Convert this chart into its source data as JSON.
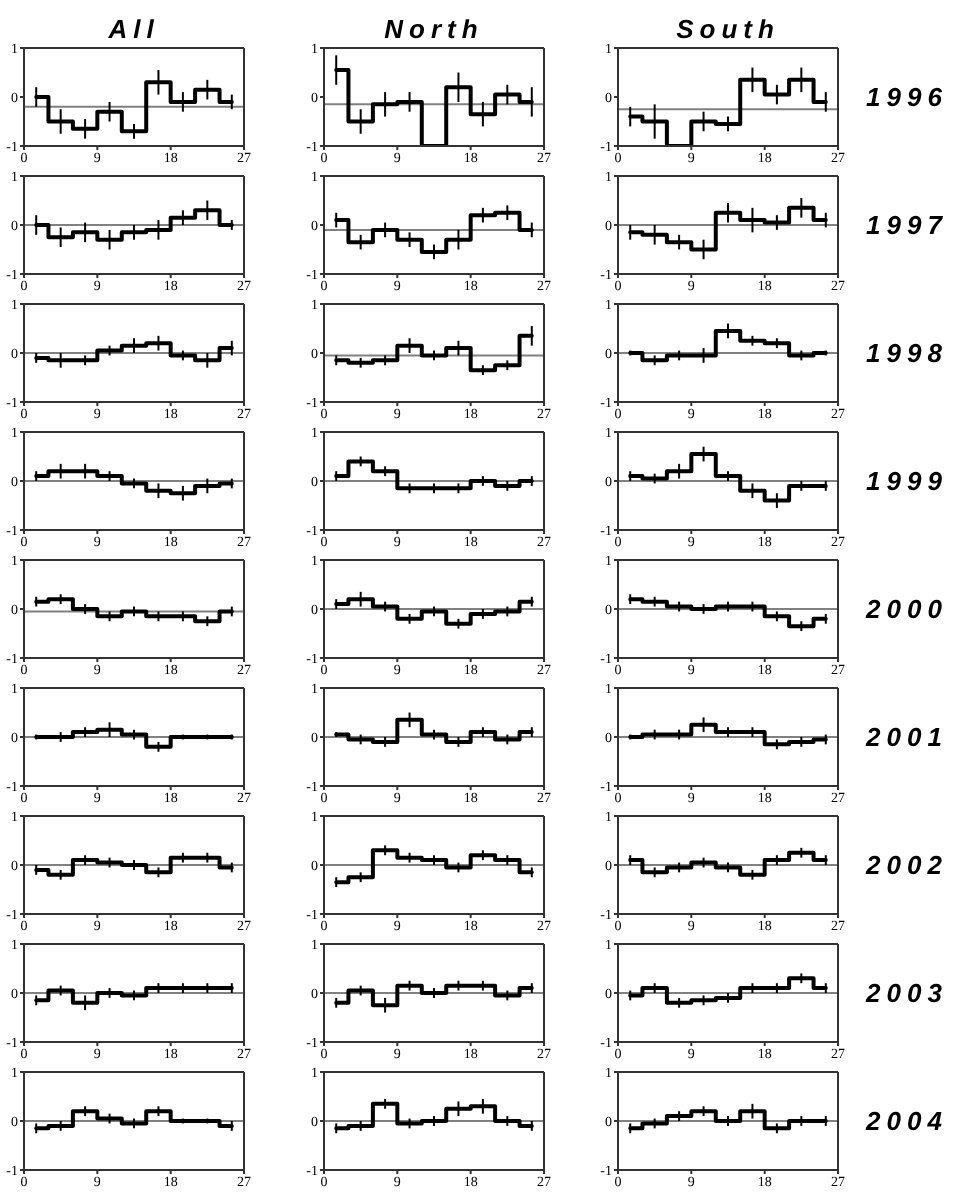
{
  "chart_data": [
    {
      "type": "step",
      "title": "All",
      "x": [
        1.5,
        4.5,
        7.5,
        10.5,
        13.5,
        16.5,
        19.5,
        22.5,
        25.5
      ],
      "values": [
        0,
        -0.5,
        -0.65,
        -0.3,
        -0.7,
        0.3,
        -0.1,
        0.15,
        -0.1
      ],
      "errors": [
        0.2,
        0.25,
        0.2,
        0.2,
        0.15,
        0.25,
        0.2,
        0.2,
        0.15
      ],
      "color": "#000000",
      "xlim": [
        0,
        27
      ],
      "xticks": [
        0,
        9,
        18,
        27
      ],
      "ylim": [
        -1,
        1
      ],
      "yticks": [
        -1,
        0,
        1
      ],
      "ref_lines": [
        {
          "axis": "y",
          "value": -0.2,
          "color": "#808080"
        }
      ]
    },
    {
      "type": "step",
      "title": "North",
      "x": [
        1.5,
        4.5,
        7.5,
        10.5,
        13.5,
        16.5,
        19.5,
        22.5,
        25.5
      ],
      "values": [
        0.55,
        -0.5,
        -0.15,
        -0.1,
        -1,
        0.2,
        -0.35,
        0.05,
        -0.1
      ],
      "errors": [
        0.3,
        0.25,
        0.25,
        0.2,
        null,
        0.3,
        0.25,
        0.2,
        0.3
      ],
      "color": "#000000",
      "xlim": [
        0,
        27
      ],
      "xticks": [
        0,
        9,
        18,
        27
      ],
      "ylim": [
        -1,
        1
      ],
      "yticks": [
        -1,
        0,
        1
      ],
      "ref_lines": [
        {
          "axis": "y",
          "value": -0.15,
          "color": "#808080"
        }
      ]
    },
    {
      "type": "step",
      "title": "South",
      "y2label": "1996",
      "x": [
        1.5,
        4.5,
        7.5,
        10.5,
        13.5,
        16.5,
        19.5,
        22.5,
        25.5
      ],
      "values": [
        -0.4,
        -0.5,
        -1,
        -0.5,
        -0.55,
        0.35,
        0.05,
        0.35,
        -0.1
      ],
      "errors": [
        0.2,
        0.35,
        null,
        0.2,
        0.15,
        0.25,
        0.2,
        0.25,
        0.2
      ],
      "color": "#000000",
      "xlim": [
        0,
        27
      ],
      "xticks": [
        0,
        9,
        18,
        27
      ],
      "ylim": [
        -1,
        1
      ],
      "yticks": [
        -1,
        0,
        1
      ],
      "ref_lines": [
        {
          "axis": "y",
          "value": -0.25,
          "color": "#808080"
        }
      ]
    },
    {
      "type": "step",
      "x": [
        1.5,
        4.5,
        7.5,
        10.5,
        13.5,
        16.5,
        19.5,
        22.5,
        25.5
      ],
      "values": [
        0,
        -0.25,
        -0.15,
        -0.3,
        -0.15,
        -0.1,
        0.15,
        0.3,
        0
      ],
      "errors": [
        0.2,
        0.2,
        0.2,
        0.2,
        0.15,
        0.2,
        0.15,
        0.2,
        0.1
      ],
      "color": "#000000",
      "xlim": [
        0,
        27
      ],
      "xticks": [
        0,
        9,
        18,
        27
      ],
      "ylim": [
        -1,
        1
      ],
      "yticks": [
        -1,
        0,
        1
      ],
      "ref_lines": [
        {
          "axis": "y",
          "value": 0,
          "color": "#808080"
        }
      ]
    },
    {
      "type": "step",
      "x": [
        1.5,
        4.5,
        7.5,
        10.5,
        13.5,
        16.5,
        19.5,
        22.5,
        25.5
      ],
      "values": [
        0.1,
        -0.35,
        -0.1,
        -0.3,
        -0.55,
        -0.3,
        0.2,
        0.25,
        -0.1
      ],
      "errors": [
        0.15,
        0.15,
        0.15,
        0.15,
        0.15,
        0.2,
        0.15,
        0.15,
        0.15
      ],
      "color": "#000000",
      "xlim": [
        0,
        27
      ],
      "xticks": [
        0,
        9,
        18,
        27
      ],
      "ylim": [
        -1,
        1
      ],
      "yticks": [
        -1,
        0,
        1
      ],
      "ref_lines": [
        {
          "axis": "y",
          "value": -0.1,
          "color": "#808080"
        }
      ]
    },
    {
      "type": "step",
      "y2label": "1997",
      "x": [
        1.5,
        4.5,
        7.5,
        10.5,
        13.5,
        16.5,
        19.5,
        22.5,
        25.5
      ],
      "values": [
        -0.15,
        -0.2,
        -0.35,
        -0.5,
        0.25,
        0.1,
        0.05,
        0.35,
        0.1
      ],
      "errors": [
        0.15,
        0.2,
        0.15,
        0.2,
        0.2,
        0.25,
        0.15,
        0.2,
        0.15
      ],
      "color": "#000000",
      "xlim": [
        0,
        27
      ],
      "xticks": [
        0,
        9,
        18,
        27
      ],
      "ylim": [
        -1,
        1
      ],
      "yticks": [
        -1,
        0,
        1
      ],
      "ref_lines": [
        {
          "axis": "y",
          "value": 0,
          "color": "#808080"
        }
      ]
    },
    {
      "type": "step",
      "x": [
        1.5,
        4.5,
        7.5,
        10.5,
        13.5,
        16.5,
        19.5,
        22.5,
        25.5
      ],
      "values": [
        -0.1,
        -0.15,
        -0.15,
        0.05,
        0.15,
        0.2,
        -0.05,
        -0.15,
        0.1
      ],
      "errors": [
        0.1,
        0.15,
        0.1,
        0.1,
        0.15,
        0.15,
        0.1,
        0.15,
        0.15
      ],
      "color": "#000000",
      "xlim": [
        0,
        27
      ],
      "xticks": [
        0,
        9,
        18,
        27
      ],
      "ylim": [
        -1,
        1
      ],
      "yticks": [
        -1,
        0,
        1
      ],
      "ref_lines": [
        {
          "axis": "y",
          "value": 0,
          "color": "#808080"
        }
      ]
    },
    {
      "type": "step",
      "x": [
        1.5,
        4.5,
        7.5,
        10.5,
        13.5,
        16.5,
        19.5,
        22.5,
        25.5
      ],
      "values": [
        -0.15,
        -0.2,
        -0.15,
        0.15,
        -0.05,
        0.1,
        -0.35,
        -0.25,
        0.35
      ],
      "errors": [
        0.1,
        0.1,
        0.1,
        0.15,
        0.1,
        0.15,
        0.1,
        0.1,
        0.2
      ],
      "color": "#000000",
      "xlim": [
        0,
        27
      ],
      "xticks": [
        0,
        9,
        18,
        27
      ],
      "ylim": [
        -1,
        1
      ],
      "yticks": [
        -1,
        0,
        1
      ],
      "ref_lines": [
        {
          "axis": "y",
          "value": -0.05,
          "color": "#808080"
        }
      ]
    },
    {
      "type": "step",
      "y2label": "1998",
      "x": [
        1.5,
        4.5,
        7.5,
        10.5,
        13.5,
        16.5,
        19.5,
        22.5,
        25.5
      ],
      "values": [
        0,
        -0.15,
        -0.05,
        -0.05,
        0.45,
        0.25,
        0.2,
        -0.05,
        0
      ],
      "errors": [
        0.05,
        0.1,
        0.1,
        0.15,
        0.15,
        0.1,
        0.1,
        0.1,
        0.05
      ],
      "color": "#000000",
      "xlim": [
        0,
        27
      ],
      "xticks": [
        0,
        9,
        18,
        27
      ],
      "ylim": [
        -1,
        1
      ],
      "yticks": [
        -1,
        0,
        1
      ],
      "ref_lines": [
        {
          "axis": "y",
          "value": 0,
          "color": "#808080"
        }
      ]
    },
    {
      "type": "step",
      "x": [
        1.5,
        4.5,
        7.5,
        10.5,
        13.5,
        16.5,
        19.5,
        22.5,
        25.5
      ],
      "values": [
        0.1,
        0.2,
        0.2,
        0.1,
        -0.05,
        -0.2,
        -0.25,
        -0.1,
        -0.05
      ],
      "errors": [
        0.1,
        0.15,
        0.15,
        0.1,
        0.1,
        0.15,
        0.15,
        0.15,
        0.1
      ],
      "color": "#000000",
      "xlim": [
        0,
        27
      ],
      "xticks": [
        0,
        9,
        18,
        27
      ],
      "ylim": [
        -1,
        1
      ],
      "yticks": [
        -1,
        0,
        1
      ],
      "ref_lines": [
        {
          "axis": "y",
          "value": 0,
          "color": "#808080"
        }
      ]
    },
    {
      "type": "step",
      "x": [
        1.5,
        4.5,
        7.5,
        10.5,
        13.5,
        16.5,
        19.5,
        22.5,
        25.5
      ],
      "values": [
        0.1,
        0.4,
        0.2,
        -0.15,
        -0.15,
        -0.15,
        0,
        -0.1,
        0
      ],
      "errors": [
        0.1,
        0.1,
        0.1,
        0.1,
        0.1,
        0.1,
        0.1,
        0.1,
        0.1
      ],
      "color": "#000000",
      "xlim": [
        0,
        27
      ],
      "xticks": [
        0,
        9,
        18,
        27
      ],
      "ylim": [
        -1,
        1
      ],
      "yticks": [
        -1,
        0,
        1
      ],
      "ref_lines": [
        {
          "axis": "y",
          "value": 0,
          "color": "#808080"
        }
      ]
    },
    {
      "type": "step",
      "y2label": "1999",
      "x": [
        1.5,
        4.5,
        7.5,
        10.5,
        13.5,
        16.5,
        19.5,
        22.5,
        25.5
      ],
      "values": [
        0.1,
        0.05,
        0.2,
        0.55,
        0.1,
        -0.2,
        -0.4,
        -0.1,
        -0.1
      ],
      "errors": [
        0.1,
        0.1,
        0.15,
        0.15,
        0.1,
        0.15,
        0.15,
        0.1,
        0.1
      ],
      "color": "#000000",
      "xlim": [
        0,
        27
      ],
      "xticks": [
        0,
        9,
        18,
        27
      ],
      "ylim": [
        -1,
        1
      ],
      "yticks": [
        -1,
        0,
        1
      ],
      "ref_lines": [
        {
          "axis": "y",
          "value": 0,
          "color": "#808080"
        }
      ]
    },
    {
      "type": "step",
      "x": [
        1.5,
        4.5,
        7.5,
        10.5,
        13.5,
        16.5,
        19.5,
        22.5,
        25.5
      ],
      "values": [
        0.15,
        0.2,
        0,
        -0.15,
        -0.05,
        -0.15,
        -0.15,
        -0.25,
        -0.05
      ],
      "errors": [
        0.1,
        0.1,
        0.1,
        0.1,
        0.1,
        0.1,
        0.1,
        0.1,
        0.1
      ],
      "color": "#000000",
      "xlim": [
        0,
        27
      ],
      "xticks": [
        0,
        9,
        18,
        27
      ],
      "ylim": [
        -1,
        1
      ],
      "yticks": [
        -1,
        0,
        1
      ],
      "ref_lines": [
        {
          "axis": "y",
          "value": -0.05,
          "color": "#808080"
        }
      ]
    },
    {
      "type": "step",
      "x": [
        1.5,
        4.5,
        7.5,
        10.5,
        13.5,
        16.5,
        19.5,
        22.5,
        25.5
      ],
      "values": [
        0.1,
        0.2,
        0.05,
        -0.2,
        -0.05,
        -0.3,
        -0.1,
        -0.05,
        0.15
      ],
      "errors": [
        0.1,
        0.15,
        0.1,
        0.1,
        0.1,
        0.1,
        0.1,
        0.1,
        0.1
      ],
      "color": "#000000",
      "xlim": [
        0,
        27
      ],
      "xticks": [
        0,
        9,
        18,
        27
      ],
      "ylim": [
        -1,
        1
      ],
      "yticks": [
        -1,
        0,
        1
      ],
      "ref_lines": [
        {
          "axis": "y",
          "value": 0,
          "color": "#808080"
        }
      ]
    },
    {
      "type": "step",
      "y2label": "2000",
      "x": [
        1.5,
        4.5,
        7.5,
        10.5,
        13.5,
        16.5,
        19.5,
        22.5,
        25.5
      ],
      "values": [
        0.2,
        0.15,
        0.05,
        0,
        0.05,
        0.05,
        -0.15,
        -0.35,
        -0.2
      ],
      "errors": [
        0.1,
        0.1,
        0.1,
        0.1,
        0.1,
        0.1,
        0.1,
        0.1,
        0.1
      ],
      "color": "#000000",
      "xlim": [
        0,
        27
      ],
      "xticks": [
        0,
        9,
        18,
        27
      ],
      "ylim": [
        -1,
        1
      ],
      "yticks": [
        -1,
        0,
        1
      ],
      "ref_lines": [
        {
          "axis": "y",
          "value": 0,
          "color": "#808080"
        }
      ]
    },
    {
      "type": "step",
      "x": [
        1.5,
        4.5,
        7.5,
        10.5,
        13.5,
        16.5,
        19.5,
        22.5,
        25.5
      ],
      "values": [
        0,
        0,
        0.1,
        0.15,
        0.05,
        -0.2,
        0,
        0,
        0
      ],
      "errors": [
        0.05,
        0.1,
        0.1,
        0.15,
        0.1,
        0.1,
        0.05,
        0.05,
        0.05
      ],
      "color": "#000000",
      "xlim": [
        0,
        27
      ],
      "xticks": [
        0,
        9,
        18,
        27
      ],
      "ylim": [
        -1,
        1
      ],
      "yticks": [
        -1,
        0,
        1
      ],
      "ref_lines": [
        {
          "axis": "y",
          "value": 0,
          "color": "#808080"
        }
      ]
    },
    {
      "type": "step",
      "x": [
        1.5,
        4.5,
        7.5,
        10.5,
        13.5,
        16.5,
        19.5,
        22.5,
        25.5
      ],
      "values": [
        0.05,
        -0.05,
        -0.1,
        0.35,
        0.05,
        -0.1,
        0.1,
        -0.05,
        0.1
      ],
      "errors": [
        0.05,
        0.1,
        0.1,
        0.15,
        0.1,
        0.1,
        0.1,
        0.1,
        0.1
      ],
      "color": "#000000",
      "xlim": [
        0,
        27
      ],
      "xticks": [
        0,
        9,
        18,
        27
      ],
      "ylim": [
        -1,
        1
      ],
      "yticks": [
        -1,
        0,
        1
      ],
      "ref_lines": [
        {
          "axis": "y",
          "value": 0,
          "color": "#808080"
        }
      ]
    },
    {
      "type": "step",
      "y2label": "2001",
      "x": [
        1.5,
        4.5,
        7.5,
        10.5,
        13.5,
        16.5,
        19.5,
        22.5,
        25.5
      ],
      "values": [
        0,
        0.05,
        0.05,
        0.25,
        0.1,
        0.1,
        -0.15,
        -0.1,
        -0.05
      ],
      "errors": [
        0.05,
        0.1,
        0.1,
        0.15,
        0.1,
        0.1,
        0.1,
        0.1,
        0.1
      ],
      "color": "#000000",
      "xlim": [
        0,
        27
      ],
      "xticks": [
        0,
        9,
        18,
        27
      ],
      "ylim": [
        -1,
        1
      ],
      "yticks": [
        -1,
        0,
        1
      ],
      "ref_lines": [
        {
          "axis": "y",
          "value": 0,
          "color": "#808080"
        }
      ]
    },
    {
      "type": "step",
      "x": [
        1.5,
        4.5,
        7.5,
        10.5,
        13.5,
        16.5,
        19.5,
        22.5,
        25.5
      ],
      "values": [
        -0.1,
        -0.2,
        0.1,
        0.05,
        0,
        -0.15,
        0.15,
        0.15,
        -0.05
      ],
      "errors": [
        0.1,
        0.1,
        0.1,
        0.1,
        0.1,
        0.1,
        0.1,
        0.1,
        0.1
      ],
      "color": "#000000",
      "xlim": [
        0,
        27
      ],
      "xticks": [
        0,
        9,
        18,
        27
      ],
      "ylim": [
        -1,
        1
      ],
      "yticks": [
        -1,
        0,
        1
      ],
      "ref_lines": [
        {
          "axis": "y",
          "value": 0,
          "color": "#808080"
        }
      ]
    },
    {
      "type": "step",
      "x": [
        1.5,
        4.5,
        7.5,
        10.5,
        13.5,
        16.5,
        19.5,
        22.5,
        25.5
      ],
      "values": [
        -0.35,
        -0.25,
        0.3,
        0.15,
        0.1,
        -0.05,
        0.2,
        0.1,
        -0.15
      ],
      "errors": [
        0.1,
        0.1,
        0.1,
        0.1,
        0.1,
        0.1,
        0.1,
        0.1,
        0.1
      ],
      "color": "#000000",
      "xlim": [
        0,
        27
      ],
      "xticks": [
        0,
        9,
        18,
        27
      ],
      "ylim": [
        -1,
        1
      ],
      "yticks": [
        -1,
        0,
        1
      ],
      "ref_lines": [
        {
          "axis": "y",
          "value": 0,
          "color": "#808080"
        }
      ]
    },
    {
      "type": "step",
      "y2label": "2002",
      "x": [
        1.5,
        4.5,
        7.5,
        10.5,
        13.5,
        16.5,
        19.5,
        22.5,
        25.5
      ],
      "values": [
        0.1,
        -0.15,
        -0.05,
        0.05,
        -0.05,
        -0.2,
        0.1,
        0.25,
        0.1
      ],
      "errors": [
        0.1,
        0.1,
        0.1,
        0.1,
        0.1,
        0.1,
        0.1,
        0.1,
        0.1
      ],
      "color": "#000000",
      "xlim": [
        0,
        27
      ],
      "xticks": [
        0,
        9,
        18,
        27
      ],
      "ylim": [
        -1,
        1
      ],
      "yticks": [
        -1,
        0,
        1
      ],
      "ref_lines": [
        {
          "axis": "y",
          "value": 0,
          "color": "#808080"
        }
      ]
    },
    {
      "type": "step",
      "x": [
        1.5,
        4.5,
        7.5,
        10.5,
        13.5,
        16.5,
        19.5,
        22.5,
        25.5
      ],
      "values": [
        -0.15,
        0.05,
        -0.2,
        0,
        -0.05,
        0.1,
        0.1,
        0.1,
        0.1
      ],
      "errors": [
        0.1,
        0.1,
        0.15,
        0.1,
        0.1,
        0.1,
        0.1,
        0.1,
        0.1
      ],
      "color": "#000000",
      "xlim": [
        0,
        27
      ],
      "xticks": [
        0,
        9,
        18,
        27
      ],
      "ylim": [
        -1,
        1
      ],
      "yticks": [
        -1,
        0,
        1
      ],
      "ref_lines": [
        {
          "axis": "y",
          "value": 0,
          "color": "#808080"
        }
      ]
    },
    {
      "type": "step",
      "x": [
        1.5,
        4.5,
        7.5,
        10.5,
        13.5,
        16.5,
        19.5,
        22.5,
        25.5
      ],
      "values": [
        -0.2,
        0.05,
        -0.25,
        0.15,
        0,
        0.15,
        0.15,
        -0.05,
        0.1
      ],
      "errors": [
        0.1,
        0.1,
        0.15,
        0.1,
        0.1,
        0.1,
        0.1,
        0.1,
        0.1
      ],
      "color": "#000000",
      "xlim": [
        0,
        27
      ],
      "xticks": [
        0,
        9,
        18,
        27
      ],
      "ylim": [
        -1,
        1
      ],
      "yticks": [
        -1,
        0,
        1
      ],
      "ref_lines": [
        {
          "axis": "y",
          "value": 0,
          "color": "#808080"
        }
      ]
    },
    {
      "type": "step",
      "y2label": "2003",
      "x": [
        1.5,
        4.5,
        7.5,
        10.5,
        13.5,
        16.5,
        19.5,
        22.5,
        25.5
      ],
      "values": [
        -0.05,
        0.1,
        -0.2,
        -0.15,
        -0.1,
        0.1,
        0.1,
        0.3,
        0.1
      ],
      "errors": [
        0.1,
        0.1,
        0.1,
        0.1,
        0.1,
        0.1,
        0.1,
        0.1,
        0.1
      ],
      "color": "#000000",
      "xlim": [
        0,
        27
      ],
      "xticks": [
        0,
        9,
        18,
        27
      ],
      "ylim": [
        -1,
        1
      ],
      "yticks": [
        -1,
        0,
        1
      ],
      "ref_lines": [
        {
          "axis": "y",
          "value": 0,
          "color": "#808080"
        }
      ]
    },
    {
      "type": "step",
      "x": [
        1.5,
        4.5,
        7.5,
        10.5,
        13.5,
        16.5,
        19.5,
        22.5,
        25.5
      ],
      "values": [
        -0.15,
        -0.1,
        0.2,
        0.05,
        -0.05,
        0.2,
        0,
        0,
        -0.1
      ],
      "errors": [
        0.1,
        0.1,
        0.1,
        0.1,
        0.1,
        0.1,
        0.05,
        0.05,
        0.1
      ],
      "color": "#000000",
      "xlim": [
        0,
        27
      ],
      "xticks": [
        0,
        9,
        18,
        27
      ],
      "ylim": [
        -1,
        1
      ],
      "yticks": [
        -1,
        0,
        1
      ],
      "ref_lines": [
        {
          "axis": "y",
          "value": 0,
          "color": "#808080"
        }
      ]
    },
    {
      "type": "step",
      "x": [
        1.5,
        4.5,
        7.5,
        10.5,
        13.5,
        16.5,
        19.5,
        22.5,
        25.5
      ],
      "values": [
        -0.15,
        -0.1,
        0.35,
        -0.05,
        0,
        0.25,
        0.3,
        0,
        -0.1
      ],
      "errors": [
        0.1,
        0.1,
        0.1,
        0.1,
        0.1,
        0.15,
        0.15,
        0.1,
        0.1
      ],
      "color": "#000000",
      "xlim": [
        0,
        27
      ],
      "xticks": [
        0,
        9,
        18,
        27
      ],
      "ylim": [
        -1,
        1
      ],
      "yticks": [
        -1,
        0,
        1
      ],
      "ref_lines": [
        {
          "axis": "y",
          "value": 0,
          "color": "#808080"
        }
      ]
    },
    {
      "type": "step",
      "y2label": "2004",
      "x": [
        1.5,
        4.5,
        7.5,
        10.5,
        13.5,
        16.5,
        19.5,
        22.5,
        25.5
      ],
      "values": [
        -0.15,
        -0.05,
        0.1,
        0.2,
        0,
        0.2,
        -0.15,
        0,
        0
      ],
      "errors": [
        0.1,
        0.1,
        0.1,
        0.1,
        0.1,
        0.15,
        0.1,
        0.1,
        0.1
      ],
      "color": "#000000",
      "xlim": [
        0,
        27
      ],
      "xticks": [
        0,
        9,
        18,
        27
      ],
      "ylim": [
        -1,
        1
      ],
      "yticks": [
        -1,
        0,
        1
      ],
      "ref_lines": [
        {
          "axis": "y",
          "value": 0,
          "color": "#808080"
        }
      ]
    }
  ]
}
